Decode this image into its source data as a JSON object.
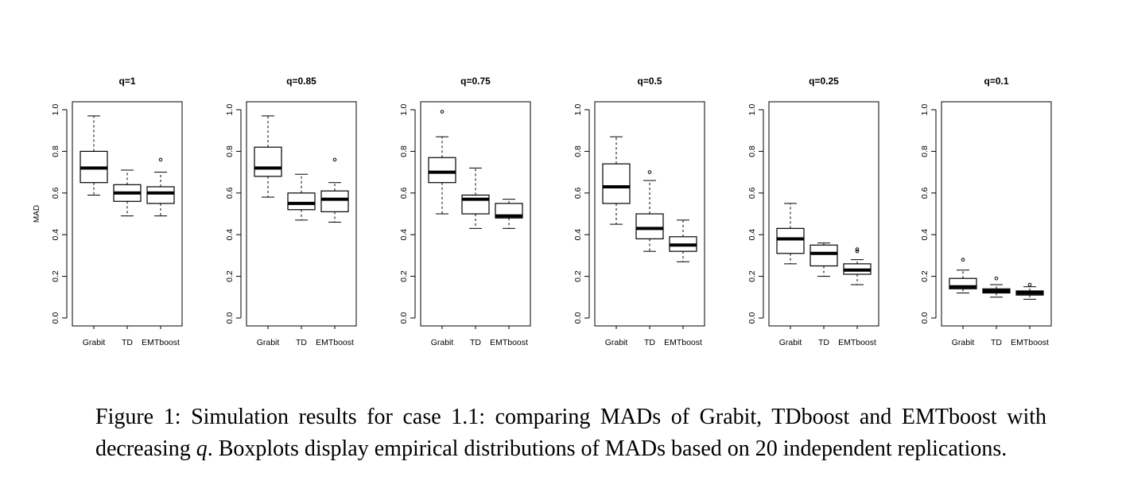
{
  "chart_data": [
    {
      "type": "box",
      "title": "q=1",
      "ylabel": "MAD",
      "ylim": [
        0,
        1
      ],
      "yticks": [
        "0.0",
        "0.2",
        "0.4",
        "0.6",
        "0.8",
        "1.0"
      ],
      "categories": [
        "Grabit",
        "TD",
        "EMTboost"
      ],
      "boxes": [
        {
          "min": 0.59,
          "q1": 0.65,
          "median": 0.72,
          "q3": 0.8,
          "max": 0.97,
          "outliers": []
        },
        {
          "min": 0.49,
          "q1": 0.56,
          "median": 0.6,
          "q3": 0.64,
          "max": 0.71,
          "outliers": []
        },
        {
          "min": 0.49,
          "q1": 0.55,
          "median": 0.6,
          "q3": 0.63,
          "max": 0.7,
          "outliers": [
            0.76
          ]
        }
      ]
    },
    {
      "type": "box",
      "title": "q=0.85",
      "ylim": [
        0,
        1
      ],
      "yticks": [
        "0.0",
        "0.2",
        "0.4",
        "0.6",
        "0.8",
        "1.0"
      ],
      "categories": [
        "Grabit",
        "TD",
        "EMTboost"
      ],
      "boxes": [
        {
          "min": 0.58,
          "q1": 0.68,
          "median": 0.72,
          "q3": 0.82,
          "max": 0.97,
          "outliers": []
        },
        {
          "min": 0.47,
          "q1": 0.52,
          "median": 0.55,
          "q3": 0.6,
          "max": 0.69,
          "outliers": []
        },
        {
          "min": 0.46,
          "q1": 0.51,
          "median": 0.57,
          "q3": 0.61,
          "max": 0.65,
          "outliers": [
            0.76
          ]
        }
      ]
    },
    {
      "type": "box",
      "title": "q=0.75",
      "ylim": [
        0,
        1
      ],
      "yticks": [
        "0.0",
        "0.2",
        "0.4",
        "0.6",
        "0.8",
        "1.0"
      ],
      "categories": [
        "Grabit",
        "TD",
        "EMTboost"
      ],
      "boxes": [
        {
          "min": 0.5,
          "q1": 0.65,
          "median": 0.7,
          "q3": 0.77,
          "max": 0.87,
          "outliers": [
            0.99
          ]
        },
        {
          "min": 0.43,
          "q1": 0.5,
          "median": 0.57,
          "q3": 0.59,
          "max": 0.72,
          "outliers": []
        },
        {
          "min": 0.43,
          "q1": 0.48,
          "median": 0.49,
          "q3": 0.55,
          "max": 0.57,
          "outliers": []
        }
      ]
    },
    {
      "type": "box",
      "title": "q=0.5",
      "ylim": [
        0,
        1
      ],
      "yticks": [
        "0.0",
        "0.2",
        "0.4",
        "0.6",
        "0.8",
        "1.0"
      ],
      "categories": [
        "Grabit",
        "TD",
        "EMTboost"
      ],
      "boxes": [
        {
          "min": 0.45,
          "q1": 0.55,
          "median": 0.63,
          "q3": 0.74,
          "max": 0.87,
          "outliers": []
        },
        {
          "min": 0.32,
          "q1": 0.38,
          "median": 0.43,
          "q3": 0.5,
          "max": 0.66,
          "outliers": [
            0.7
          ]
        },
        {
          "min": 0.27,
          "q1": 0.32,
          "median": 0.35,
          "q3": 0.39,
          "max": 0.47,
          "outliers": []
        }
      ]
    },
    {
      "type": "box",
      "title": "q=0.25",
      "ylim": [
        0,
        1
      ],
      "yticks": [
        "0.0",
        "0.2",
        "0.4",
        "0.6",
        "0.8",
        "1.0"
      ],
      "categories": [
        "Grabit",
        "TD",
        "EMTboost"
      ],
      "boxes": [
        {
          "min": 0.26,
          "q1": 0.31,
          "median": 0.38,
          "q3": 0.43,
          "max": 0.55,
          "outliers": []
        },
        {
          "min": 0.2,
          "q1": 0.25,
          "median": 0.31,
          "q3": 0.35,
          "max": 0.36,
          "outliers": []
        },
        {
          "min": 0.16,
          "q1": 0.21,
          "median": 0.23,
          "q3": 0.26,
          "max": 0.28,
          "outliers": [
            0.32,
            0.33
          ]
        }
      ]
    },
    {
      "type": "box",
      "title": "q=0.1",
      "ylim": [
        0,
        1
      ],
      "yticks": [
        "0.0",
        "0.2",
        "0.4",
        "0.6",
        "0.8",
        "1.0"
      ],
      "categories": [
        "Grabit",
        "TD",
        "EMTboost"
      ],
      "boxes": [
        {
          "min": 0.12,
          "q1": 0.14,
          "median": 0.15,
          "q3": 0.19,
          "max": 0.23,
          "outliers": [
            0.28
          ]
        },
        {
          "min": 0.1,
          "q1": 0.12,
          "median": 0.13,
          "q3": 0.14,
          "max": 0.16,
          "outliers": [
            0.19
          ]
        },
        {
          "min": 0.09,
          "q1": 0.11,
          "median": 0.12,
          "q3": 0.13,
          "max": 0.15,
          "outliers": [
            0.16
          ]
        }
      ]
    }
  ],
  "caption": {
    "label": "Figure 1:",
    "text_before_q": "Simulation results for case 1.1: comparing MADs of Grabit, TDboost and EMTboost with decreasing",
    "q_symbol": "q",
    "text_after_q": ". Boxplots display empirical distributions of MADs based on 20 independent replications."
  }
}
